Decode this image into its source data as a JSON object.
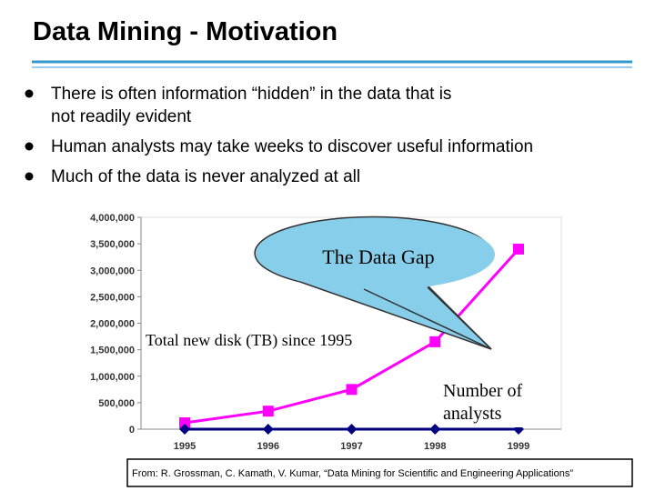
{
  "slide": {
    "title": "Data Mining - Motivation",
    "bullets": [
      "There is often information “hidden” in the data that is not readily evident",
      "Human analysts may take weeks to discover useful information",
      "Much of the data is never analyzed at all"
    ],
    "citation": "From: R. Grossman, C. Kamath, V. Kumar, “Data Mining for Scientific and Engineering Applications”"
  },
  "chart_data": {
    "type": "line",
    "categories": [
      "1995",
      "1996",
      "1997",
      "1998",
      "1999"
    ],
    "series": [
      {
        "name": "Total new disk (TB) since 1995",
        "color": "#ff00ff",
        "marker": "square",
        "values": [
          120000,
          340000,
          750000,
          1650000,
          3400000
        ]
      },
      {
        "name": "Number of analysts",
        "color": "#000080",
        "marker": "diamond",
        "values": [
          0,
          0,
          0,
          0,
          0
        ]
      }
    ],
    "ylim": [
      0,
      4000000
    ],
    "yticks": [
      0,
      {
        "value": 500000,
        "label": "500,000"
      },
      {
        "value": 1000000,
        "label": "1,000,000"
      },
      {
        "value": 1500000,
        "label": "1,500,000"
      },
      {
        "value": 2000000,
        "label": "2,000,000"
      },
      {
        "value": 2500000,
        "label": "2,500,000"
      },
      {
        "value": 3000000,
        "label": "3,000,000"
      },
      {
        "value": 3500000,
        "label": "3,500,000"
      },
      {
        "value": 4000000,
        "label": "4,000,000"
      }
    ],
    "annotation": "The Data Gap"
  }
}
